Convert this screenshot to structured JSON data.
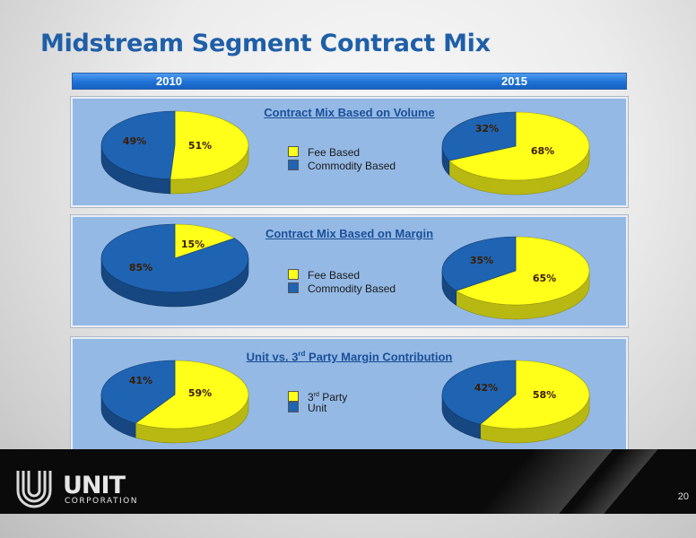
{
  "slide": {
    "title": "Midstream Segment Contract Mix",
    "page_number": "20",
    "year_left": "2010",
    "year_right": "2015"
  },
  "colors": {
    "fee_yellow": "#ffff19",
    "commodity_blue": "#1f63b3",
    "panel_bg": "#94b9e5",
    "title_blue": "#1f5fa8"
  },
  "logo": {
    "name": "UNIT",
    "subtitle": "CORPORATION"
  },
  "panels": [
    {
      "title_main": "Contract Mix Based on Volume",
      "legend": [
        {
          "label": "Fee Based",
          "color": "#ffff19"
        },
        {
          "label": "Commodity Based",
          "color": "#1f63b3"
        }
      ]
    },
    {
      "title_main": "Contract Mix Based on Margin",
      "legend": [
        {
          "label": "Fee Based",
          "color": "#ffff19"
        },
        {
          "label": "Commodity Based",
          "color": "#1f63b3"
        }
      ]
    },
    {
      "title_pre": "Unit vs. 3",
      "title_sup": "rd",
      "title_post": " Party Margin Contribution",
      "legend": [
        {
          "label_pre": "3",
          "label_sup": "rd",
          "label_post": " Party",
          "color": "#ffff19"
        },
        {
          "label": "Unit",
          "color": "#1f63b3"
        }
      ]
    }
  ],
  "chart_data": [
    {
      "type": "pie",
      "panel": "Contract Mix Based on Volume",
      "year": "2010",
      "slices": [
        {
          "label": "Fee Based",
          "value": 51,
          "display": "51%"
        },
        {
          "label": "Commodity Based",
          "value": 49,
          "display": "49%"
        }
      ]
    },
    {
      "type": "pie",
      "panel": "Contract Mix Based on Volume",
      "year": "2015",
      "slices": [
        {
          "label": "Fee Based",
          "value": 68,
          "display": "68%"
        },
        {
          "label": "Commodity Based",
          "value": 32,
          "display": "32%"
        }
      ]
    },
    {
      "type": "pie",
      "panel": "Contract Mix Based on Margin",
      "year": "2010",
      "slices": [
        {
          "label": "Fee Based",
          "value": 15,
          "display": "15%"
        },
        {
          "label": "Commodity Based",
          "value": 85,
          "display": "85%"
        }
      ]
    },
    {
      "type": "pie",
      "panel": "Contract Mix Based on Margin",
      "year": "2015",
      "slices": [
        {
          "label": "Fee Based",
          "value": 65,
          "display": "65%"
        },
        {
          "label": "Commodity Based",
          "value": 35,
          "display": "35%"
        }
      ]
    },
    {
      "type": "pie",
      "panel": "Unit vs. 3rd Party Margin Contribution",
      "year": "2010",
      "slices": [
        {
          "label": "3rd Party",
          "value": 59,
          "display": "59%"
        },
        {
          "label": "Unit",
          "value": 41,
          "display": "41%"
        }
      ]
    },
    {
      "type": "pie",
      "panel": "Unit vs. 3rd Party Margin Contribution",
      "year": "2015",
      "slices": [
        {
          "label": "3rd Party",
          "value": 58,
          "display": "58%"
        },
        {
          "label": "Unit",
          "value": 42,
          "display": "42%"
        }
      ]
    }
  ]
}
